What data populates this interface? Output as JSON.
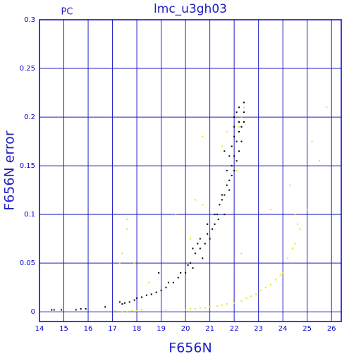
{
  "chart_data": {
    "type": "scatter",
    "title": "lmc_u3gh03",
    "annotation": "PC",
    "xlabel": "F656N",
    "ylabel": "F656N error",
    "xlim": [
      14,
      26.4
    ],
    "ylim": [
      -0.01,
      0.3
    ],
    "xticks": [
      14,
      15,
      16,
      17,
      18,
      19,
      20,
      21,
      22,
      23,
      24,
      25,
      26
    ],
    "yticks": [
      0,
      0.05,
      0.1,
      0.15,
      0.2,
      0.25,
      0.3
    ],
    "grid": true,
    "grid_color": "#2020c0",
    "axis_color": "#0000cc",
    "series": [
      {
        "color": "#000000",
        "x": [
          14.5,
          14.6,
          14.9,
          15.5,
          15.7,
          15.9,
          16.7,
          17.3,
          17.4,
          17.5,
          17.7,
          17.9,
          18.0,
          18.2,
          18.4,
          18.6,
          18.8,
          18.9,
          19.0,
          19.2,
          19.3,
          19.5,
          19.7,
          19.8,
          20.0,
          20.1,
          20.2,
          20.3,
          20.4,
          20.5,
          20.6,
          20.7,
          20.8,
          20.9,
          21.0,
          21.1,
          21.2,
          21.3,
          21.35,
          21.4,
          21.5,
          21.6,
          21.6,
          21.7,
          21.8,
          21.8,
          21.9,
          21.9,
          22.0,
          22.0,
          21.9,
          22.0,
          22.0,
          22.0,
          22.1,
          22.1,
          22.2,
          22.2,
          22.2,
          22.3,
          22.3,
          22.3,
          22.4,
          22.4,
          22.4,
          22.2,
          22.1,
          21.8,
          21.7,
          21.5,
          21.2,
          20.9,
          20.6,
          20.3,
          21.6
        ],
        "y": [
          0.002,
          0.002,
          0.002,
          0.002,
          0.003,
          0.003,
          0.005,
          0.01,
          0.008,
          0.009,
          0.01,
          0.012,
          0.014,
          0.015,
          0.017,
          0.018,
          0.02,
          0.04,
          0.022,
          0.025,
          0.03,
          0.03,
          0.035,
          0.04,
          0.04,
          0.048,
          0.05,
          0.045,
          0.06,
          0.07,
          0.065,
          0.055,
          0.07,
          0.08,
          0.075,
          0.085,
          0.09,
          0.1,
          0.095,
          0.11,
          0.115,
          0.1,
          0.12,
          0.13,
          0.135,
          0.125,
          0.14,
          0.15,
          0.145,
          0.16,
          0.17,
          0.18,
          0.19,
          0.2,
          0.175,
          0.205,
          0.185,
          0.195,
          0.21,
          0.2,
          0.19,
          0.175,
          0.205,
          0.215,
          0.195,
          0.165,
          0.155,
          0.16,
          0.145,
          0.12,
          0.1,
          0.09,
          0.075,
          0.065,
          0.165
        ]
      },
      {
        "color": "#f0e020",
        "x": [
          17.1,
          17.4,
          17.6,
          17.8,
          18.0,
          18.2,
          19.2,
          20.0,
          20.2,
          20.4,
          20.6,
          20.8,
          21.0,
          21.3,
          21.5,
          21.7,
          22.0,
          22.3,
          22.5,
          22.7,
          22.9,
          23.1,
          23.3,
          23.5,
          23.7,
          23.9,
          24.0,
          24.2,
          24.4,
          24.5,
          24.6,
          24.5,
          24.7,
          25.0,
          25.2,
          25.8,
          22.2,
          22.3,
          22.4,
          22.1,
          17.4,
          17.6,
          17.6,
          17.3,
          17.9,
          18.5,
          20.2,
          20.4,
          20.7,
          20.7,
          21.5,
          21.7,
          19.6,
          23.5,
          24.3,
          25.5,
          22.3
        ],
        "y": [
          0.001,
          0.0,
          0.0,
          0.001,
          0.001,
          0.002,
          0.002,
          0.002,
          0.003,
          0.003,
          0.004,
          0.004,
          0.005,
          0.006,
          0.007,
          0.008,
          0.009,
          0.011,
          0.014,
          0.016,
          0.018,
          0.022,
          0.025,
          0.028,
          0.033,
          0.038,
          0.04,
          0.055,
          0.065,
          0.07,
          0.09,
          0.1,
          0.085,
          0.105,
          0.175,
          0.21,
          0.19,
          0.2,
          0.21,
          0.145,
          0.06,
          0.085,
          0.095,
          0.05,
          0.05,
          0.03,
          0.075,
          0.115,
          0.11,
          0.18,
          0.17,
          0.185,
          0.1,
          0.105,
          0.13,
          0.155,
          0.06
        ]
      }
    ]
  }
}
